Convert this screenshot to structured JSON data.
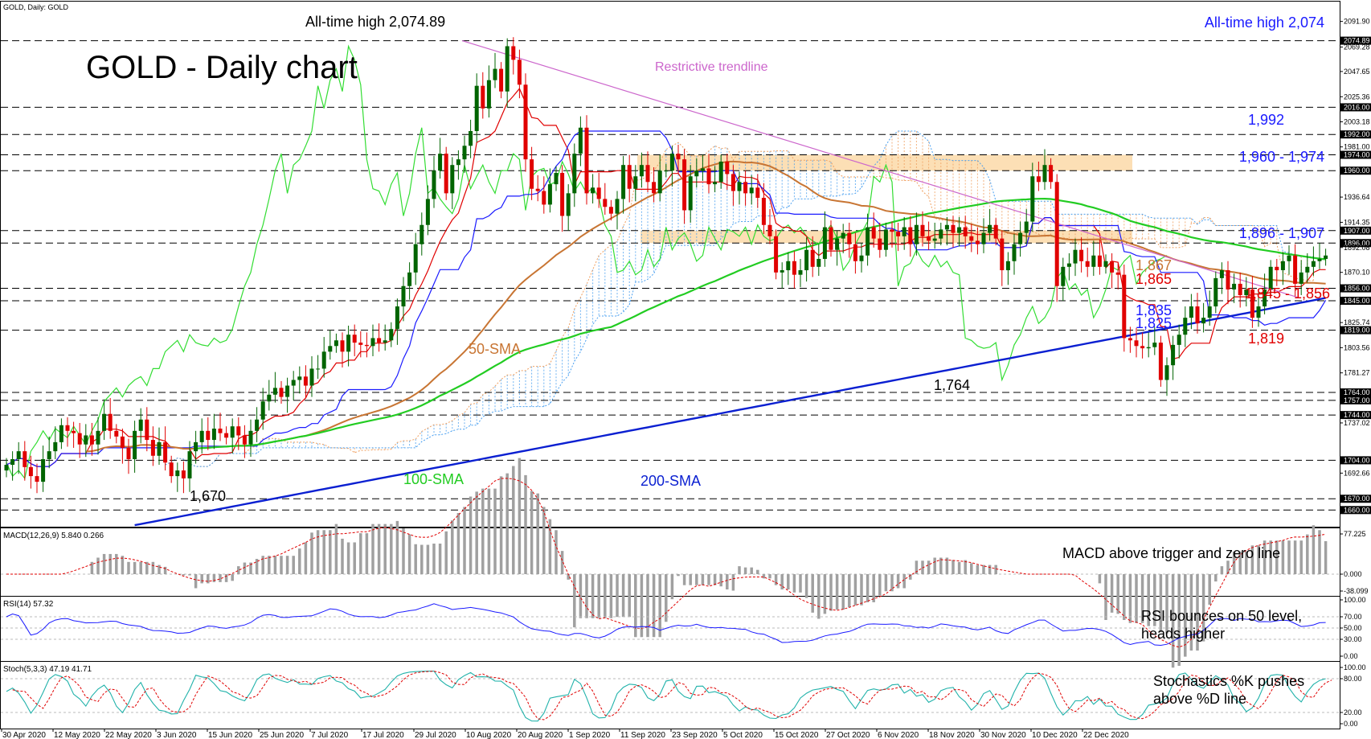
{
  "header": {
    "symbol_line": "GOLD, Daily:  GOLD"
  },
  "chart_data": {
    "type": "line",
    "title": "GOLD - Daily chart",
    "price_axis": {
      "range": [
        1646,
        2108
      ],
      "ticks": [
        "2091.90",
        "2074.89",
        "2069.28",
        "2047.65",
        "2025.36",
        "2016.00",
        "2003.18",
        "1992.00",
        "1981.00",
        "1974.00",
        "1960.00",
        "1936.64",
        "1914.35",
        "1907.00",
        "1896.00",
        "1892.08",
        "1870.10",
        "1856.00",
        "1845.00",
        "1825.74",
        "1819.00",
        "1803.56",
        "1781.27",
        "1764.00",
        "1757.00",
        "1744.00",
        "1737.02",
        "1704.00",
        "1692.66",
        "1670.00",
        "1660.00"
      ],
      "highlighted": [
        "2074.89",
        "2016.00",
        "1992.00",
        "1974.00",
        "1960.00",
        "1907.00",
        "1896.00",
        "1856.00",
        "1845.00",
        "1819.00",
        "1764.00",
        "1757.00",
        "1744.00",
        "1704.00",
        "1670.00",
        "1660.00"
      ]
    },
    "x_ticks": [
      "30 Apr 2020",
      "12 May 2020",
      "22 May 2020",
      "3 Jun 2020",
      "15 Jun 2020",
      "25 Jun 2020",
      "7 Jul 2020",
      "17 Jul 2020",
      "29 Jul 2020",
      "10 Aug 2020",
      "20 Aug 2020",
      "1 Sep 2020",
      "11 Sep 2020",
      "23 Sep 2020",
      "5 Oct 2020",
      "15 Oct 2020",
      "27 Oct 2020",
      "6 Nov 2020",
      "18 Nov 2020",
      "30 Nov 2020",
      "10 Dec 2020",
      "22 Dec 2020"
    ],
    "horizontal_levels": [
      2074.89,
      2016,
      1992,
      1974,
      1960,
      1907,
      1896,
      1856,
      1845,
      1819,
      1764,
      1757,
      1744,
      1704,
      1670,
      1660
    ],
    "resistance_zones": [
      [
        1960,
        1974
      ],
      [
        1896,
        1907
      ]
    ],
    "restrictive_trendline": {
      "from": [
        "29 Jul 2020",
        2074.89
      ],
      "to": [
        "6 Jan 2021",
        1848
      ]
    },
    "ohlc_close_series": [
      1700,
      1705,
      1712,
      1698,
      1690,
      1685,
      1705,
      1712,
      1720,
      1735,
      1730,
      1728,
      1718,
      1726,
      1718,
      1730,
      1745,
      1730,
      1725,
      1715,
      1705,
      1730,
      1740,
      1722,
      1708,
      1720,
      1702,
      1690,
      1695,
      1688,
      1712,
      1720,
      1730,
      1722,
      1732,
      1728,
      1724,
      1734,
      1726,
      1718,
      1730,
      1740,
      1756,
      1762,
      1768,
      1760,
      1770,
      1775,
      1778,
      1770,
      1785,
      1785,
      1800,
      1805,
      1810,
      1800,
      1815,
      1808,
      1806,
      1805,
      1812,
      1808,
      1810,
      1820,
      1840,
      1858,
      1870,
      1895,
      1912,
      1935,
      1960,
      1975,
      1940,
      1965,
      1970,
      1982,
      1995,
      2035,
      2015,
      2040,
      2050,
      2030,
      2070,
      2058,
      2036,
      1970,
      1944,
      1942,
      1930,
      1948,
      1958,
      1920,
      1940,
      1975,
      1998,
      1940,
      1945,
      1935,
      1928,
      1922,
      1935,
      1965,
      1944,
      1955,
      1965,
      1950,
      1940,
      1960,
      1960,
      1975,
      1970,
      1925,
      1955,
      1960,
      1962,
      1948,
      1950,
      1968,
      1957,
      1942,
      1950,
      1940,
      1945,
      1936,
      1912,
      1902,
      1870,
      1872,
      1880,
      1868,
      1872,
      1890,
      1875,
      1882,
      1910,
      1890,
      1900,
      1905,
      1895,
      1880,
      1885,
      1910,
      1900,
      1890,
      1908,
      1906,
      1902,
      1910,
      1895,
      1912,
      1902,
      1898,
      1900,
      1908,
      1912,
      1905,
      1910,
      1902,
      1898,
      1895,
      1905,
      1912,
      1900,
      1872,
      1880,
      1895,
      1905,
      1915,
      1955,
      1950,
      1965,
      1950,
      1858,
      1875,
      1878,
      1890,
      1880,
      1875,
      1885,
      1875,
      1880,
      1870,
      1868,
      1812,
      1810,
      1805,
      1803,
      1804,
      1808,
      1775,
      1788,
      1806,
      1815,
      1830,
      1840,
      1825,
      1830,
      1840,
      1865,
      1872,
      1855,
      1860,
      1850,
      1855,
      1830,
      1840,
      1855,
      1875,
      1872,
      1880,
      1885,
      1860,
      1870,
      1875,
      1880,
      1882,
      1885
    ],
    "series": [
      {
        "name": "50-SMA"
      },
      {
        "name": "100-SMA"
      },
      {
        "name": "200-SMA"
      }
    ],
    "annotations": {
      "all_time_high": "All-time high 2,074.89",
      "all_time_high_right": "All-time high 2,074",
      "trendline": "Restrictive trendline",
      "low_1670": "1,670",
      "low_1764": "1,764",
      "sma50": "50-SMA",
      "sma100": "100-SMA",
      "sma200": "200-SMA",
      "level_1992": "1,992",
      "level_1960_1974": "1,960 - 1,974",
      "level_1896_1907": "1,896 - 1,907",
      "level_1867": "1,867",
      "level_1865": "1,865",
      "level_1845_1856": "1,845 - 1,856",
      "level_1835": "1,835",
      "level_1825": "1,825",
      "level_1819": "1,819"
    },
    "macd": {
      "header": "MACD(12,26,9) 5.840 0.266",
      "ticks": [
        "77.225",
        "0.000",
        "-38.099"
      ],
      "comment": "MACD above trigger and zero line",
      "last_main": 5.84,
      "last_signal": 0.266
    },
    "rsi": {
      "header": "RSI(14) 57.32",
      "ticks": [
        "100.00",
        "70.00",
        "50.00",
        "30.00",
        "0.00"
      ],
      "comment_line1": "RSI bounces on 50 level,",
      "comment_line2": "heads higher",
      "last": 57.32
    },
    "stoch": {
      "header": "Stoch(5,3,3) 47.19 41.71",
      "ticks": [
        "100.00",
        "80.00",
        "20.00",
        "0.00"
      ],
      "comment_line1": "Stochastics %K pushes",
      "comment_line2": "above %D line",
      "last_k": 47.19,
      "last_d": 41.71
    },
    "colors": {
      "bull": "#006400",
      "bear": "#e00000",
      "sma50": "#c87533",
      "sma100": "#22cc22",
      "sma200": "#0a1fd1",
      "tenkan": "#e00000",
      "kijun": "#1a1aff",
      "chikou": "#33dd33",
      "trendline": "#cc66cc",
      "zone": "#fbd9a8",
      "cloud_orange": "#f0a060",
      "cloud_blue": "#4aa0f0",
      "text_blue": "#1a1aff",
      "text_red": "#e00000",
      "text_tan": "#c87533"
    }
  }
}
